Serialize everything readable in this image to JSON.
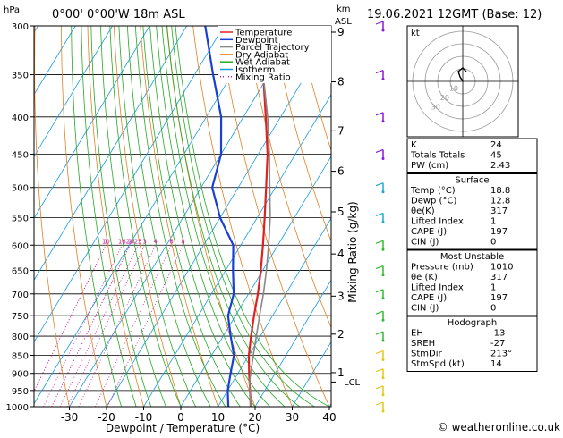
{
  "header": {
    "location": "0°00'  0°00'W  18m  ASL",
    "datetime": "19.06.2021  12GMT  (Base: 12)",
    "hpa_label": "hPa",
    "km_label": "km",
    "asl_label": "ASL"
  },
  "skewt": {
    "xlabel": "Dewpoint / Temperature (°C)",
    "right_label": "Mixing Ratio (g/kg)",
    "x_ticks": [
      "-30",
      "-20",
      "-10",
      "0",
      "10",
      "20",
      "30",
      "40"
    ],
    "p_ticks": [
      "300",
      "350",
      "400",
      "450",
      "500",
      "550",
      "600",
      "650",
      "700",
      "750",
      "800",
      "850",
      "900",
      "950",
      "1000"
    ],
    "km_ticks": [
      {
        "label": "9",
        "p": 306
      },
      {
        "label": "8",
        "p": 358
      },
      {
        "label": "7",
        "p": 418
      },
      {
        "label": "6",
        "p": 475
      },
      {
        "label": "5",
        "p": 540
      },
      {
        "label": "4",
        "p": 617
      },
      {
        "label": "3",
        "p": 705
      },
      {
        "label": "2",
        "p": 795
      },
      {
        "label": "1",
        "p": 898
      }
    ],
    "lcl_label": "LCL",
    "lcl_p": 925,
    "mixing_ratio_labels": [
      "1",
      "2",
      "3",
      "4",
      "6",
      "8",
      "10",
      "16",
      "20",
      "25"
    ],
    "legend": [
      {
        "label": "Temperature",
        "color": "#dd2222",
        "style": "solid"
      },
      {
        "label": "Dewpoint",
        "color": "#1a3fd6",
        "style": "solid"
      },
      {
        "label": "Parcel Trajectory",
        "color": "#888888",
        "style": "solid"
      },
      {
        "label": "Dry Adiabat",
        "color": "#e08020",
        "style": "solid"
      },
      {
        "label": "Wet Adiabat",
        "color": "#22aa22",
        "style": "solid"
      },
      {
        "label": "Isotherm",
        "color": "#1a9ae0",
        "style": "solid"
      },
      {
        "label": "Mixing Ratio",
        "color": "#cc1a99",
        "style": "dotted"
      }
    ]
  },
  "chart_data": {
    "type": "line",
    "title": "",
    "xlabel": "Dewpoint / Temperature (°C)",
    "ylabel": "hPa",
    "x_range": [
      -40,
      40
    ],
    "p_range": [
      300,
      1000
    ],
    "series": [
      {
        "name": "Temperature",
        "color": "#dd2222",
        "points": [
          [
            1000,
            18.8
          ],
          [
            950,
            16
          ],
          [
            900,
            13
          ],
          [
            850,
            10
          ],
          [
            800,
            7.5
          ],
          [
            750,
            5
          ],
          [
            700,
            2.5
          ],
          [
            650,
            -0.5
          ],
          [
            600,
            -4
          ],
          [
            550,
            -8
          ],
          [
            500,
            -12.5
          ],
          [
            450,
            -17.5
          ],
          [
            400,
            -24
          ],
          [
            350,
            -31.5
          ],
          [
            300,
            -40.5
          ]
        ]
      },
      {
        "name": "Dewpoint",
        "color": "#1a3fd6",
        "points": [
          [
            1000,
            12.8
          ],
          [
            950,
            10
          ],
          [
            900,
            8
          ],
          [
            850,
            6
          ],
          [
            800,
            2
          ],
          [
            750,
            -2
          ],
          [
            700,
            -4
          ],
          [
            650,
            -8
          ],
          [
            600,
            -12
          ],
          [
            550,
            -20
          ],
          [
            500,
            -27
          ],
          [
            450,
            -30
          ],
          [
            400,
            -36
          ],
          [
            350,
            -45
          ],
          [
            300,
            -55
          ]
        ]
      },
      {
        "name": "Parcel Trajectory",
        "color": "#888888",
        "points": [
          [
            1000,
            18.8
          ],
          [
            925,
            14.5
          ],
          [
            850,
            11.2
          ],
          [
            750,
            6.5
          ],
          [
            700,
            4
          ],
          [
            650,
            1
          ],
          [
            600,
            -2.5
          ],
          [
            550,
            -6.5
          ],
          [
            500,
            -11.5
          ],
          [
            450,
            -17
          ],
          [
            400,
            -23.5
          ],
          [
            350,
            -31.5
          ],
          [
            300,
            -41
          ]
        ]
      }
    ],
    "wind_barbs_p": [
      300,
      350,
      400,
      450,
      500,
      550,
      600,
      650,
      700,
      750,
      800,
      850,
      900,
      950,
      1000
    ]
  },
  "hodograph": {
    "unit": "kt",
    "ring_labels": [
      "10",
      "20",
      "30"
    ]
  },
  "indices": {
    "rows": [
      {
        "label": "K",
        "value": "24"
      },
      {
        "label": "Totals Totals",
        "value": "45"
      },
      {
        "label": "PW (cm)",
        "value": "2.43"
      }
    ]
  },
  "surface": {
    "title": "Surface",
    "rows": [
      {
        "label": "Temp (°C)",
        "value": "18.8"
      },
      {
        "label": "Dewp (°C)",
        "value": "12.8"
      },
      {
        "label": "θe(K)",
        "value": "317"
      },
      {
        "label": "Lifted Index",
        "value": "1"
      },
      {
        "label": "CAPE (J)",
        "value": "197"
      },
      {
        "label": "CIN (J)",
        "value": "0"
      }
    ]
  },
  "most_unstable": {
    "title": "Most Unstable",
    "rows": [
      {
        "label": "Pressure (mb)",
        "value": "1010"
      },
      {
        "label": "θe (K)",
        "value": "317"
      },
      {
        "label": "Lifted Index",
        "value": "1"
      },
      {
        "label": "CAPE (J)",
        "value": "197"
      },
      {
        "label": "CIN (J)",
        "value": "0"
      }
    ]
  },
  "hodo_table": {
    "title": "Hodograph",
    "rows": [
      {
        "label": "EH",
        "value": "-13"
      },
      {
        "label": "SREH",
        "value": "-27"
      },
      {
        "label": "StmDir",
        "value": "213°"
      },
      {
        "label": "StmSpd (kt)",
        "value": "14"
      }
    ]
  },
  "footer": {
    "credit": "© weatheronline.co.uk"
  }
}
